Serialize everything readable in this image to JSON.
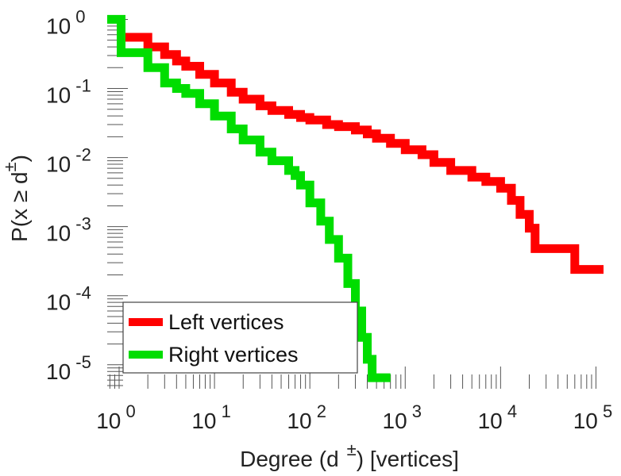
{
  "chart_data": {
    "type": "line",
    "xlabel": {
      "main": "Degree (d",
      "sup": "±",
      "tail": ") [vertices]"
    },
    "ylabel": {
      "main": "P(x ≥ d",
      "sup": "±",
      "tail": ")"
    },
    "x_scale": "log",
    "y_scale": "log",
    "xlim": [
      0.75,
      140000
    ],
    "ylim": [
      4.5e-06,
      1.25
    ],
    "x_ticks": [
      {
        "base": "10",
        "exp": "0"
      },
      {
        "base": "10",
        "exp": "1"
      },
      {
        "base": "10",
        "exp": "2"
      },
      {
        "base": "10",
        "exp": "3"
      },
      {
        "base": "10",
        "exp": "4"
      },
      {
        "base": "10",
        "exp": "5"
      }
    ],
    "y_ticks": [
      {
        "base": "10",
        "exp": "0"
      },
      {
        "base": "10",
        "exp": "-1"
      },
      {
        "base": "10",
        "exp": "-2"
      },
      {
        "base": "10",
        "exp": "-3"
      },
      {
        "base": "10",
        "exp": "-4"
      },
      {
        "base": "10",
        "exp": "-5"
      }
    ],
    "legend_position": "bottom-left",
    "series": [
      {
        "name": "Left vertices",
        "color": "#ff0000",
        "points": [
          [
            1,
            0.55
          ],
          [
            1.5,
            0.55
          ],
          [
            2,
            0.4
          ],
          [
            3,
            0.31
          ],
          [
            4,
            0.25
          ],
          [
            5,
            0.21
          ],
          [
            7,
            0.16
          ],
          [
            10,
            0.12
          ],
          [
            15,
            0.088
          ],
          [
            20,
            0.07
          ],
          [
            30,
            0.056
          ],
          [
            40,
            0.048
          ],
          [
            60,
            0.042
          ],
          [
            80,
            0.038
          ],
          [
            100,
            0.035
          ],
          [
            150,
            0.03
          ],
          [
            200,
            0.028
          ],
          [
            300,
            0.025
          ],
          [
            400,
            0.022
          ],
          [
            500,
            0.019
          ],
          [
            700,
            0.016
          ],
          [
            1000,
            0.013
          ],
          [
            1500,
            0.011
          ],
          [
            2000,
            0.0085
          ],
          [
            3000,
            0.0065
          ],
          [
            5000,
            0.0052
          ],
          [
            7000,
            0.0045
          ],
          [
            10000,
            0.0036
          ],
          [
            13000,
            0.0024
          ],
          [
            16000,
            0.0015
          ],
          [
            20000,
            0.00095
          ],
          [
            23000,
            0.00048
          ],
          [
            30000,
            0.00048
          ],
          [
            50000,
            0.00048
          ],
          [
            60000,
            0.00024
          ],
          [
            120000,
            0.00024
          ]
        ]
      },
      {
        "name": "Right vertices",
        "color": "#00dd00",
        "points": [
          [
            0.75,
            1.0
          ],
          [
            1,
            1.0
          ],
          [
            1.05,
            0.33
          ],
          [
            1.5,
            0.33
          ],
          [
            2,
            0.2
          ],
          [
            3,
            0.12
          ],
          [
            4,
            0.1
          ],
          [
            5,
            0.085
          ],
          [
            7,
            0.06
          ],
          [
            10,
            0.04
          ],
          [
            15,
            0.026
          ],
          [
            20,
            0.018
          ],
          [
            30,
            0.012
          ],
          [
            40,
            0.009
          ],
          [
            60,
            0.0065
          ],
          [
            70,
            0.0055
          ],
          [
            80,
            0.004
          ],
          [
            100,
            0.0022
          ],
          [
            130,
            0.0012
          ],
          [
            160,
            0.00065
          ],
          [
            200,
            0.00035
          ],
          [
            250,
            0.00015
          ],
          [
            300,
            6e-05
          ],
          [
            350,
            2.5e-05
          ],
          [
            400,
            1.2e-05
          ],
          [
            450,
            6.5e-06
          ],
          [
            700,
            6.5e-06
          ]
        ]
      }
    ]
  }
}
